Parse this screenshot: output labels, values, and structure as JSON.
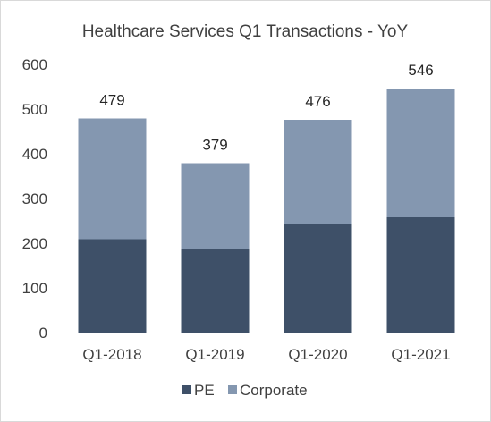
{
  "chart_data": {
    "type": "bar",
    "stacked": true,
    "title": "Healthcare Services Q1 Transactions - YoY",
    "categories": [
      "Q1-2018",
      "Q1-2019",
      "Q1-2020",
      "Q1-2021"
    ],
    "series": [
      {
        "name": "PE",
        "values": [
          209,
          187,
          244,
          258
        ],
        "color": "#3e5068"
      },
      {
        "name": "Corporate",
        "values": [
          270,
          192,
          232,
          288
        ],
        "color": "#8497b0"
      }
    ],
    "totals": [
      "479",
      "379",
      "476",
      "546"
    ],
    "ylim": [
      0,
      600
    ],
    "yticks": [
      0,
      100,
      200,
      300,
      400,
      500,
      600
    ],
    "grid": false,
    "legend_position": "bottom"
  }
}
